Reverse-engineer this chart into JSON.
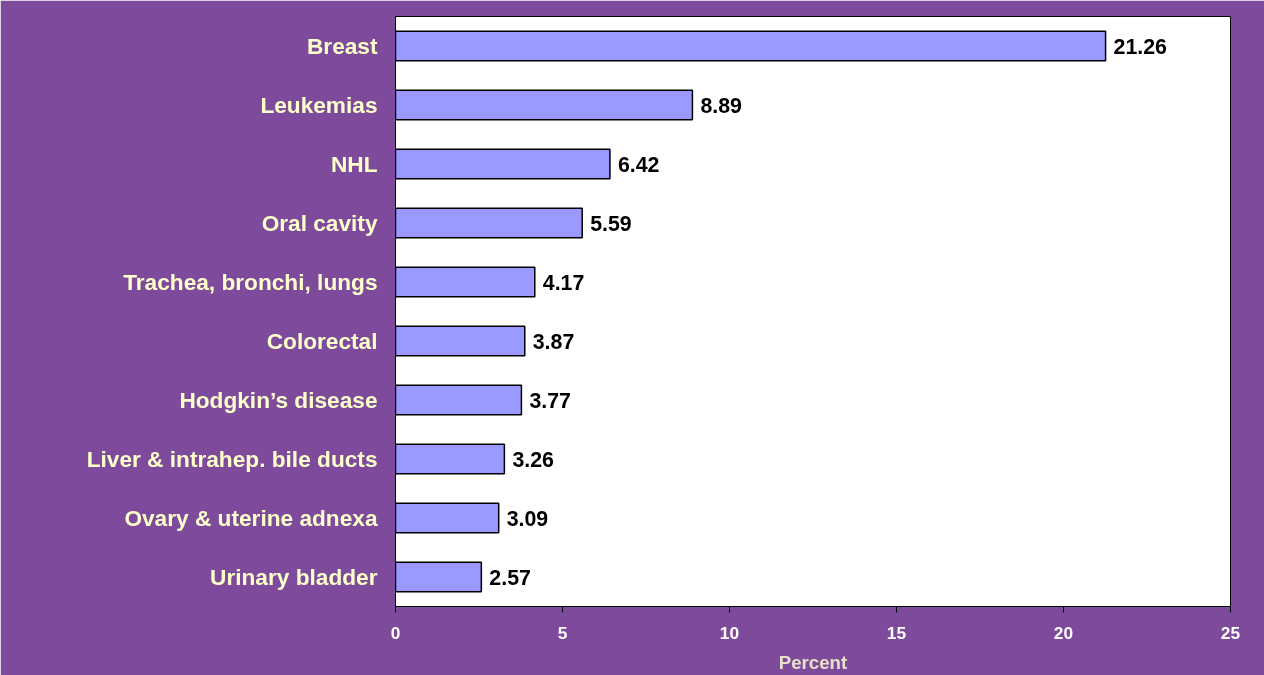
{
  "chart_data": {
    "type": "bar",
    "orientation": "horizontal",
    "xlabel": "Percent",
    "categories": [
      "Breast",
      "Leukemias",
      "NHL",
      "Oral cavity",
      "Trachea, bronchi, lungs",
      "Colorectal",
      "Hodgkin’s disease",
      "Liver & intrahep. bile ducts",
      "Ovary & uterine adnexa",
      "Urinary bladder"
    ],
    "values": [
      21.26,
      8.89,
      6.42,
      5.59,
      4.17,
      3.87,
      3.77,
      3.26,
      3.09,
      2.57
    ],
    "color": "#9999ff",
    "xlim": [
      0,
      25
    ],
    "xticks": [
      0,
      5,
      10,
      15,
      20,
      25
    ],
    "grid": false,
    "data_labels": true
  }
}
